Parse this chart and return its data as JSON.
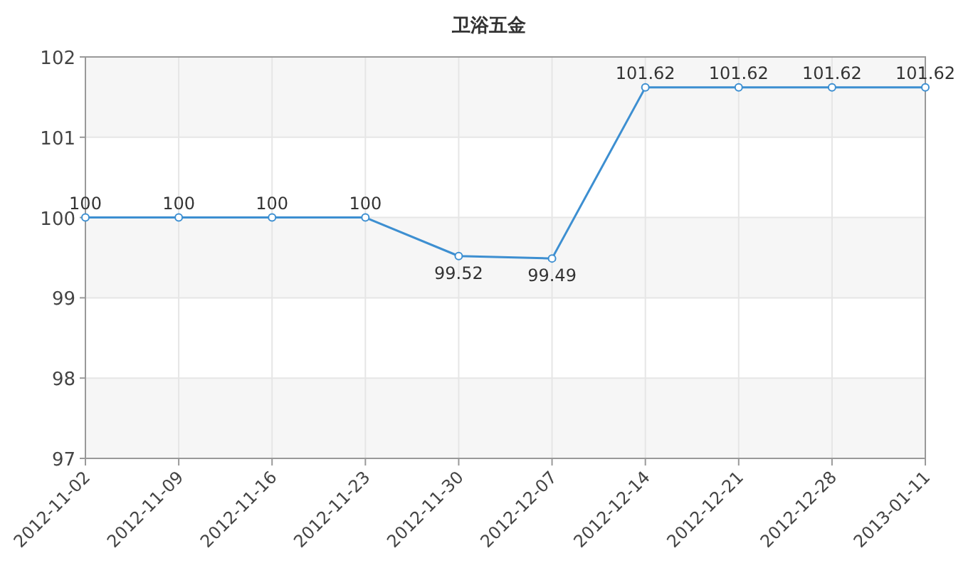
{
  "chart_data": {
    "type": "line",
    "title": "卫浴五金",
    "categories": [
      "2012-11-02",
      "2012-11-09",
      "2012-11-16",
      "2012-11-23",
      "2012-11-30",
      "2012-12-07",
      "2012-12-14",
      "2012-12-21",
      "2012-12-28",
      "2013-01-11"
    ],
    "series": [
      {
        "color": "#3d8fd1",
        "values": [
          100,
          100,
          100,
          100,
          99.52,
          99.49,
          101.62,
          101.62,
          101.62,
          101.62
        ]
      }
    ],
    "ylim": [
      97,
      102
    ],
    "yticks": [
      97,
      98,
      99,
      100,
      101,
      102
    ],
    "grid": true,
    "data_labels": true,
    "marker": "circle",
    "line_style": "solid"
  }
}
